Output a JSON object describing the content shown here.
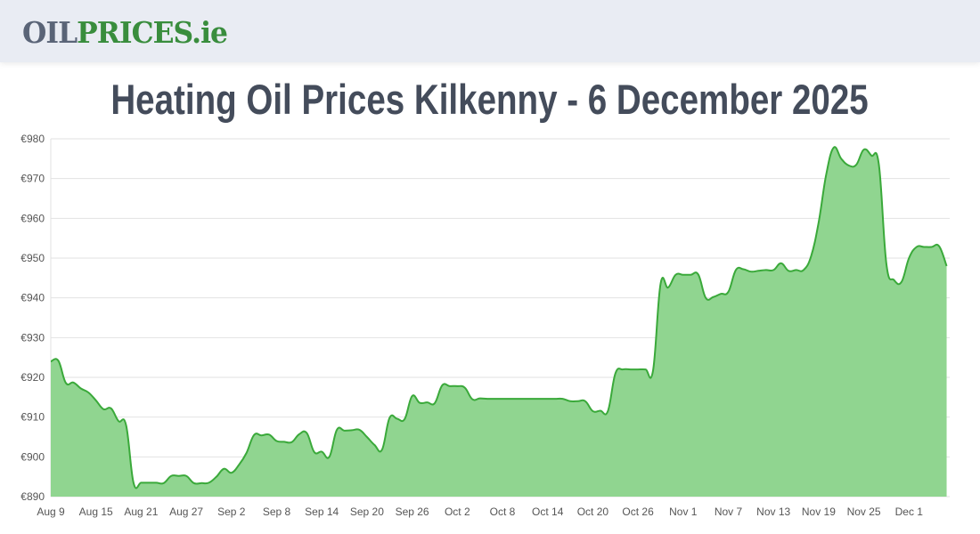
{
  "header": {
    "logo_part1": "OIL",
    "logo_part2": "PRICES.ie"
  },
  "page_title": "Heating Oil Prices Kilkenny - 6 December 2025",
  "colors": {
    "line": "#3aa93a",
    "fill": "#90d590",
    "logo_gray": "#5a6477",
    "logo_green": "#398d3d"
  },
  "chart_data": {
    "type": "area",
    "title": "Heating Oil Prices Kilkenny - 6 December 2025",
    "xlabel": "",
    "ylabel": "",
    "ylim": [
      890,
      980
    ],
    "yticks": [
      890,
      900,
      910,
      920,
      930,
      940,
      950,
      960,
      970,
      980
    ],
    "ytick_labels": [
      "€890",
      "€900",
      "€910",
      "€920",
      "€930",
      "€940",
      "€950",
      "€960",
      "€970",
      "€980"
    ],
    "x_start": "Aug 9",
    "x_unit": "day",
    "xticks": [
      0,
      6,
      12,
      18,
      24,
      30,
      36,
      42,
      48,
      54,
      60,
      66,
      72,
      78,
      84,
      90,
      96,
      102,
      108,
      114
    ],
    "xtick_labels": [
      "Aug 9",
      "Aug 15",
      "Aug 21",
      "Aug 27",
      "Sep 2",
      "Sep 8",
      "Sep 14",
      "Sep 20",
      "Sep 26",
      "Oct 2",
      "Oct 8",
      "Oct 14",
      "Oct 20",
      "Oct 26",
      "Nov 1",
      "Nov 7",
      "Nov 13",
      "Nov 19",
      "Nov 25",
      "Dec 1"
    ],
    "grid": true,
    "values": [
      924,
      924.2,
      918.6,
      918.7,
      917.2,
      916.2,
      914.2,
      912,
      912.2,
      909,
      908,
      893.4,
      893.5,
      893.5,
      893.5,
      893.4,
      895.2,
      895.2,
      895.2,
      893.4,
      893.4,
      893.5,
      895,
      897,
      896,
      898,
      901,
      905.5,
      905.4,
      905.6,
      904,
      903.8,
      903.7,
      905.7,
      906,
      901.2,
      901.3,
      900,
      906.8,
      906.6,
      906.7,
      906.8,
      905,
      903,
      901.8,
      909.8,
      909.6,
      909.5,
      915.3,
      913.6,
      913.7,
      913.5,
      918,
      917.8,
      917.8,
      917.4,
      914.5,
      914.7,
      914.6,
      914.6,
      914.6,
      914.6,
      914.6,
      914.6,
      914.6,
      914.6,
      914.6,
      914.6,
      914.6,
      914,
      914,
      914,
      911.5,
      911.6,
      911.5,
      921,
      922,
      922,
      922,
      922,
      921.7,
      943.5,
      942.6,
      945.8,
      945.8,
      945.8,
      945.9,
      940,
      940.2,
      941,
      941.5,
      947,
      947.2,
      946.6,
      946.8,
      947,
      947,
      948.7,
      946.8,
      947,
      947,
      950.5,
      959,
      971,
      977.8,
      975,
      973.3,
      973.5,
      977.3,
      975.8,
      973.5,
      948.5,
      944.5,
      944,
      950,
      952.8,
      952.8,
      952.8,
      953,
      948
    ]
  }
}
